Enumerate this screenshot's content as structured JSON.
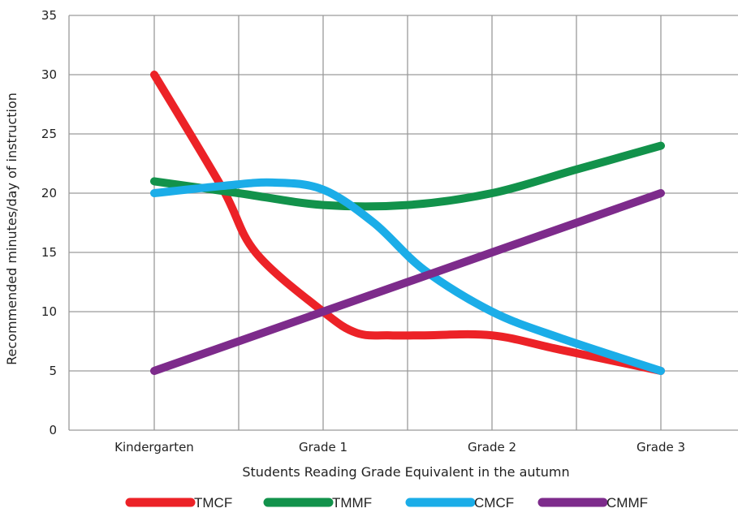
{
  "chart_data": {
    "type": "line",
    "title": "",
    "xlabel": "Students Reading Grade Equivalent in the autumn",
    "ylabel": "Recommended minutes/day of instruction",
    "categories": [
      "Kindergarten",
      "Grade 1",
      "Grade 2",
      "Grade 3"
    ],
    "ylim": [
      0,
      35
    ],
    "yticks": [
      0,
      5,
      10,
      15,
      20,
      25,
      30,
      35
    ],
    "ytick_labels": [
      "0",
      "5",
      "10",
      "15",
      "20",
      "25",
      "30",
      "35"
    ],
    "grid": true,
    "legend_position": "bottom",
    "series": [
      {
        "name": "TMCF",
        "color": "#ec2227",
        "x": [
          0,
          0.4,
          0.6,
          1.0,
          1.2,
          1.4,
          1.6,
          2.0,
          2.4,
          3.0
        ],
        "y": [
          30,
          20.5,
          15,
          10,
          8.2,
          8.0,
          8.0,
          8.0,
          6.8,
          5
        ]
      },
      {
        "name": "TMMF",
        "color": "#12924b",
        "x": [
          0,
          0.5,
          1.0,
          1.5,
          2.0,
          2.5,
          3.0
        ],
        "y": [
          21,
          20,
          19,
          19,
          20,
          22,
          24
        ]
      },
      {
        "name": "CMCF",
        "color": "#1bade8",
        "x": [
          0,
          0.4,
          0.7,
          1.0,
          1.3,
          1.6,
          2.0,
          2.4,
          3.0
        ],
        "y": [
          20,
          20.6,
          20.9,
          20.3,
          17.5,
          13.5,
          10,
          7.8,
          5
        ]
      },
      {
        "name": "CMMF",
        "color": "#7d2b8b",
        "x": [
          0,
          1.0,
          2.0,
          3.0
        ],
        "y": [
          5,
          10,
          15,
          20
        ]
      }
    ]
  }
}
